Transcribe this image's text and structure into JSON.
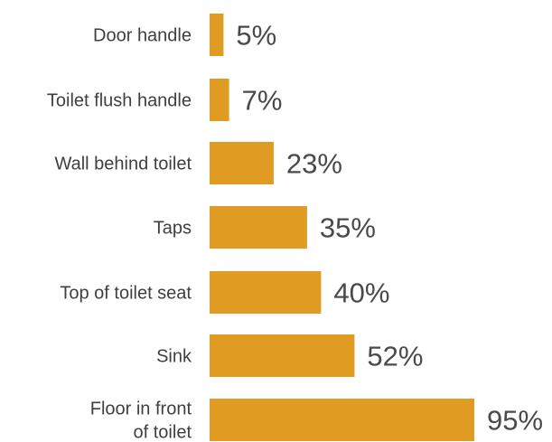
{
  "chart_data": {
    "type": "bar",
    "orientation": "horizontal",
    "categories": [
      "Door handle",
      "Toilet flush handle",
      "Wall behind toilet",
      "Taps",
      "Top of toilet seat",
      "Sink",
      "Floor in front of toilet"
    ],
    "category_lines": [
      [
        "Door handle"
      ],
      [
        "Toilet flush handle"
      ],
      [
        "Wall behind toilet"
      ],
      [
        "Taps"
      ],
      [
        "Top of toilet seat"
      ],
      [
        "Sink"
      ],
      [
        "Floor in front",
        "of toilet"
      ]
    ],
    "values": [
      5,
      7,
      23,
      35,
      40,
      52,
      95
    ],
    "value_labels": [
      "5%",
      "7%",
      "23%",
      "35%",
      "40%",
      "52%",
      "95%"
    ],
    "xlim": [
      0,
      100
    ],
    "grid": false,
    "legend": "none",
    "bar_color": "#e09b22",
    "text_color": "#3f3f3f"
  }
}
